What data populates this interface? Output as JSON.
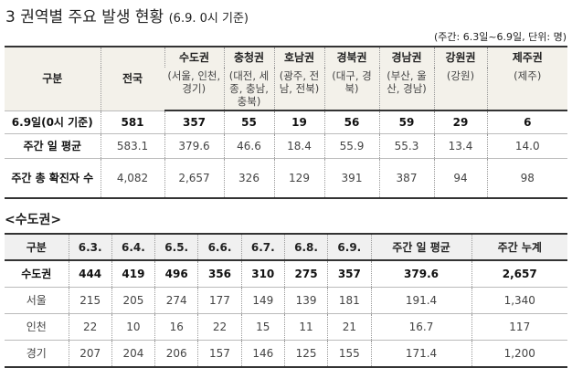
{
  "header": {
    "title": "3 권역별 주요 발생 현황",
    "subtitle": "(6.9. 0시 기준)",
    "unit_note": "(주간: 6.3일~6.9일, 단위: 명)"
  },
  "table1": {
    "corner": "구분",
    "national": "전국",
    "regions": [
      {
        "name": "수도권",
        "sub": "(서울, 인천, 경기)"
      },
      {
        "name": "충청권",
        "sub": "(대전, 세종, 충남, 충북)"
      },
      {
        "name": "호남권",
        "sub": "(광주, 전남, 전북)"
      },
      {
        "name": "경북권",
        "sub": "(대구, 경북)"
      },
      {
        "name": "경남권",
        "sub": "(부산, 울산, 경남)"
      },
      {
        "name": "강원권",
        "sub": "(강원)"
      },
      {
        "name": "제주권",
        "sub": "(제주)"
      }
    ],
    "rows": [
      [
        "6.9일(0시 기준)",
        "581",
        "357",
        "55",
        "19",
        "56",
        "59",
        "29",
        "6"
      ],
      [
        "주간 일 평균",
        "583.1",
        "379.6",
        "46.6",
        "18.4",
        "55.9",
        "55.3",
        "13.4",
        "14.0"
      ],
      [
        "주간 총 확진자 수",
        "4,082",
        "2,657",
        "326",
        "129",
        "391",
        "387",
        "94",
        "98"
      ]
    ]
  },
  "section2": {
    "title": "<수도권>"
  },
  "table2": {
    "columns": [
      "구분",
      "6.3.",
      "6.4.",
      "6.5.",
      "6.6.",
      "6.7.",
      "6.8.",
      "6.9.",
      "주간 일 평균",
      "주간 누계"
    ],
    "rows": [
      [
        "수도권",
        "444",
        "419",
        "496",
        "356",
        "310",
        "275",
        "357",
        "379.6",
        "2,657"
      ],
      [
        "서울",
        "215",
        "205",
        "274",
        "177",
        "149",
        "139",
        "181",
        "191.4",
        "1,340"
      ],
      [
        "인천",
        "22",
        "10",
        "16",
        "22",
        "15",
        "11",
        "21",
        "16.7",
        "117"
      ],
      [
        "경기",
        "207",
        "204",
        "206",
        "157",
        "146",
        "125",
        "155",
        "171.4",
        "1,200"
      ]
    ]
  }
}
